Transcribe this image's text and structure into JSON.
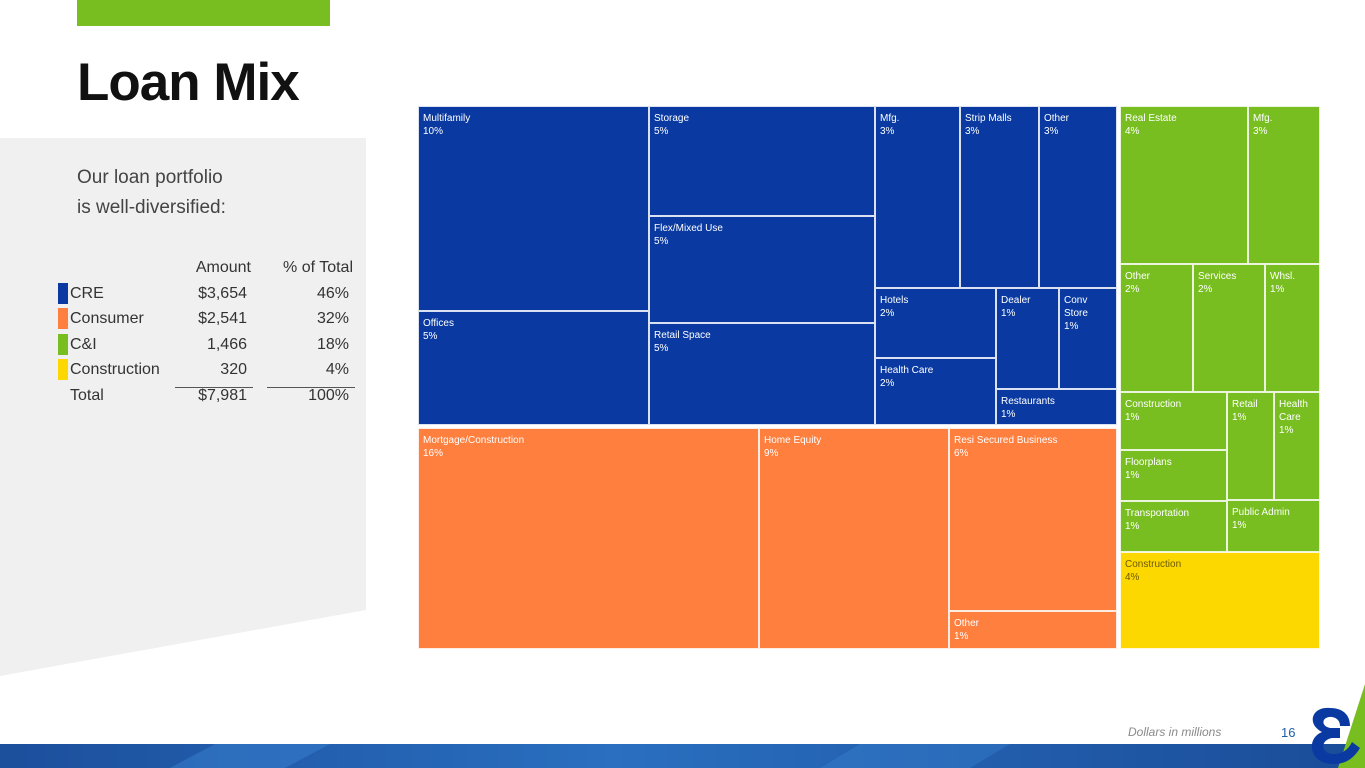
{
  "title": "Loan Mix",
  "intro": [
    "Our loan portfolio",
    "is well-diversified:"
  ],
  "summary_table": {
    "headers": [
      "Amount",
      "% of Total"
    ],
    "rows": [
      {
        "label": "CRE",
        "amount": "$3,654",
        "pct": "46%",
        "color": "#0a3aa1"
      },
      {
        "label": "Consumer",
        "amount": "$2,541",
        "pct": "32%",
        "color": "#ff7f3f"
      },
      {
        "label": "C&I",
        "amount": "1,466",
        "pct": "18%",
        "color": "#78be20"
      },
      {
        "label": "Construction",
        "amount": "320",
        "pct": "4%",
        "color": "#fcd700"
      }
    ],
    "total": {
      "label": "Total",
      "amount": "$7,981",
      "pct": "100%"
    }
  },
  "footnote": "Dollars in millions",
  "page_number": "16",
  "colors": {
    "cre": "#0a3aa1",
    "consumer": "#ff7f3f",
    "ci": "#78be20",
    "construction": "#fcd700",
    "accent": "#78be20",
    "brand_blue": "#1f5fa8"
  },
  "chart_data": {
    "type": "treemap",
    "groups": [
      {
        "name": "CRE",
        "color": "#0a3aa1",
        "items": [
          {
            "label": "Multifamily",
            "value": "10%"
          },
          {
            "label": "Offices",
            "value": "5%"
          },
          {
            "label": "Storage",
            "value": "5%"
          },
          {
            "label": "Flex/Mixed Use",
            "value": "5%"
          },
          {
            "label": "Retail Space",
            "value": "5%"
          },
          {
            "label": "Mfg.",
            "value": "3%"
          },
          {
            "label": "Strip Malls",
            "value": "3%"
          },
          {
            "label": "Other",
            "value": "3%"
          },
          {
            "label": "Hotels",
            "value": "2%"
          },
          {
            "label": "Health Care",
            "value": "2%"
          },
          {
            "label": "Dealer",
            "value": "1%"
          },
          {
            "label": "Conv Store",
            "value": "1%"
          },
          {
            "label": "Restaurants",
            "value": "1%"
          }
        ]
      },
      {
        "name": "Consumer",
        "color": "#ff7f3f",
        "items": [
          {
            "label": "Mortgage/Construction",
            "value": "16%"
          },
          {
            "label": "Home Equity",
            "value": "9%"
          },
          {
            "label": "Resi Secured Business",
            "value": "6%"
          },
          {
            "label": "Other",
            "value": "1%"
          }
        ]
      },
      {
        "name": "C&I",
        "color": "#78be20",
        "items": [
          {
            "label": "Real Estate",
            "value": "4%"
          },
          {
            "label": "Mfg.",
            "value": "3%"
          },
          {
            "label": "Other",
            "value": "2%"
          },
          {
            "label": "Services",
            "value": "2%"
          },
          {
            "label": "Whsl.",
            "value": "1%"
          },
          {
            "label": "Construction",
            "value": "1%"
          },
          {
            "label": "Retail",
            "value": "1%"
          },
          {
            "label": "Health Care",
            "value": "1%"
          },
          {
            "label": "Floorplans",
            "value": "1%"
          },
          {
            "label": "Transportation",
            "value": "1%"
          },
          {
            "label": "Public Admin",
            "value": "1%"
          }
        ]
      },
      {
        "name": "Construction",
        "color": "#fcd700",
        "items": [
          {
            "label": "Construction",
            "value": "4%"
          }
        ]
      }
    ]
  }
}
